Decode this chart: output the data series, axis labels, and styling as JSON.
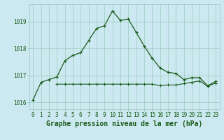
{
  "title": "Graphe pression niveau de la mer (hPa)",
  "bg_color": "#cce8f0",
  "grid_color": "#99ccbb",
  "line_color": "#1a5c1a",
  "hours": [
    0,
    1,
    2,
    3,
    4,
    5,
    6,
    7,
    8,
    9,
    10,
    11,
    12,
    13,
    14,
    15,
    16,
    17,
    18,
    19,
    20,
    21,
    22,
    23
  ],
  "pressure": [
    1016.1,
    1016.75,
    1016.85,
    1016.95,
    1017.55,
    1017.75,
    1017.85,
    1018.3,
    1018.75,
    1018.85,
    1019.4,
    1019.05,
    1019.1,
    1018.6,
    1018.1,
    1017.65,
    1017.28,
    1017.12,
    1017.08,
    1016.85,
    1016.92,
    1016.92,
    1016.62,
    1016.78
  ],
  "pressure2": [
    null,
    null,
    null,
    1016.68,
    1016.68,
    1016.68,
    1016.68,
    1016.68,
    1016.68,
    1016.68,
    1016.68,
    1016.68,
    1016.68,
    1016.68,
    1016.68,
    1016.68,
    1016.63,
    1016.65,
    1016.65,
    1016.7,
    1016.75,
    1016.8,
    1016.6,
    1016.72
  ],
  "ylim_min": 1015.75,
  "ylim_max": 1019.65,
  "yticks": [
    1016,
    1017,
    1018,
    1019
  ],
  "xlabel": "Graphe pression niveau de la mer (hPa)",
  "tick_fontsize": 5.5,
  "label_fontsize": 7.0
}
